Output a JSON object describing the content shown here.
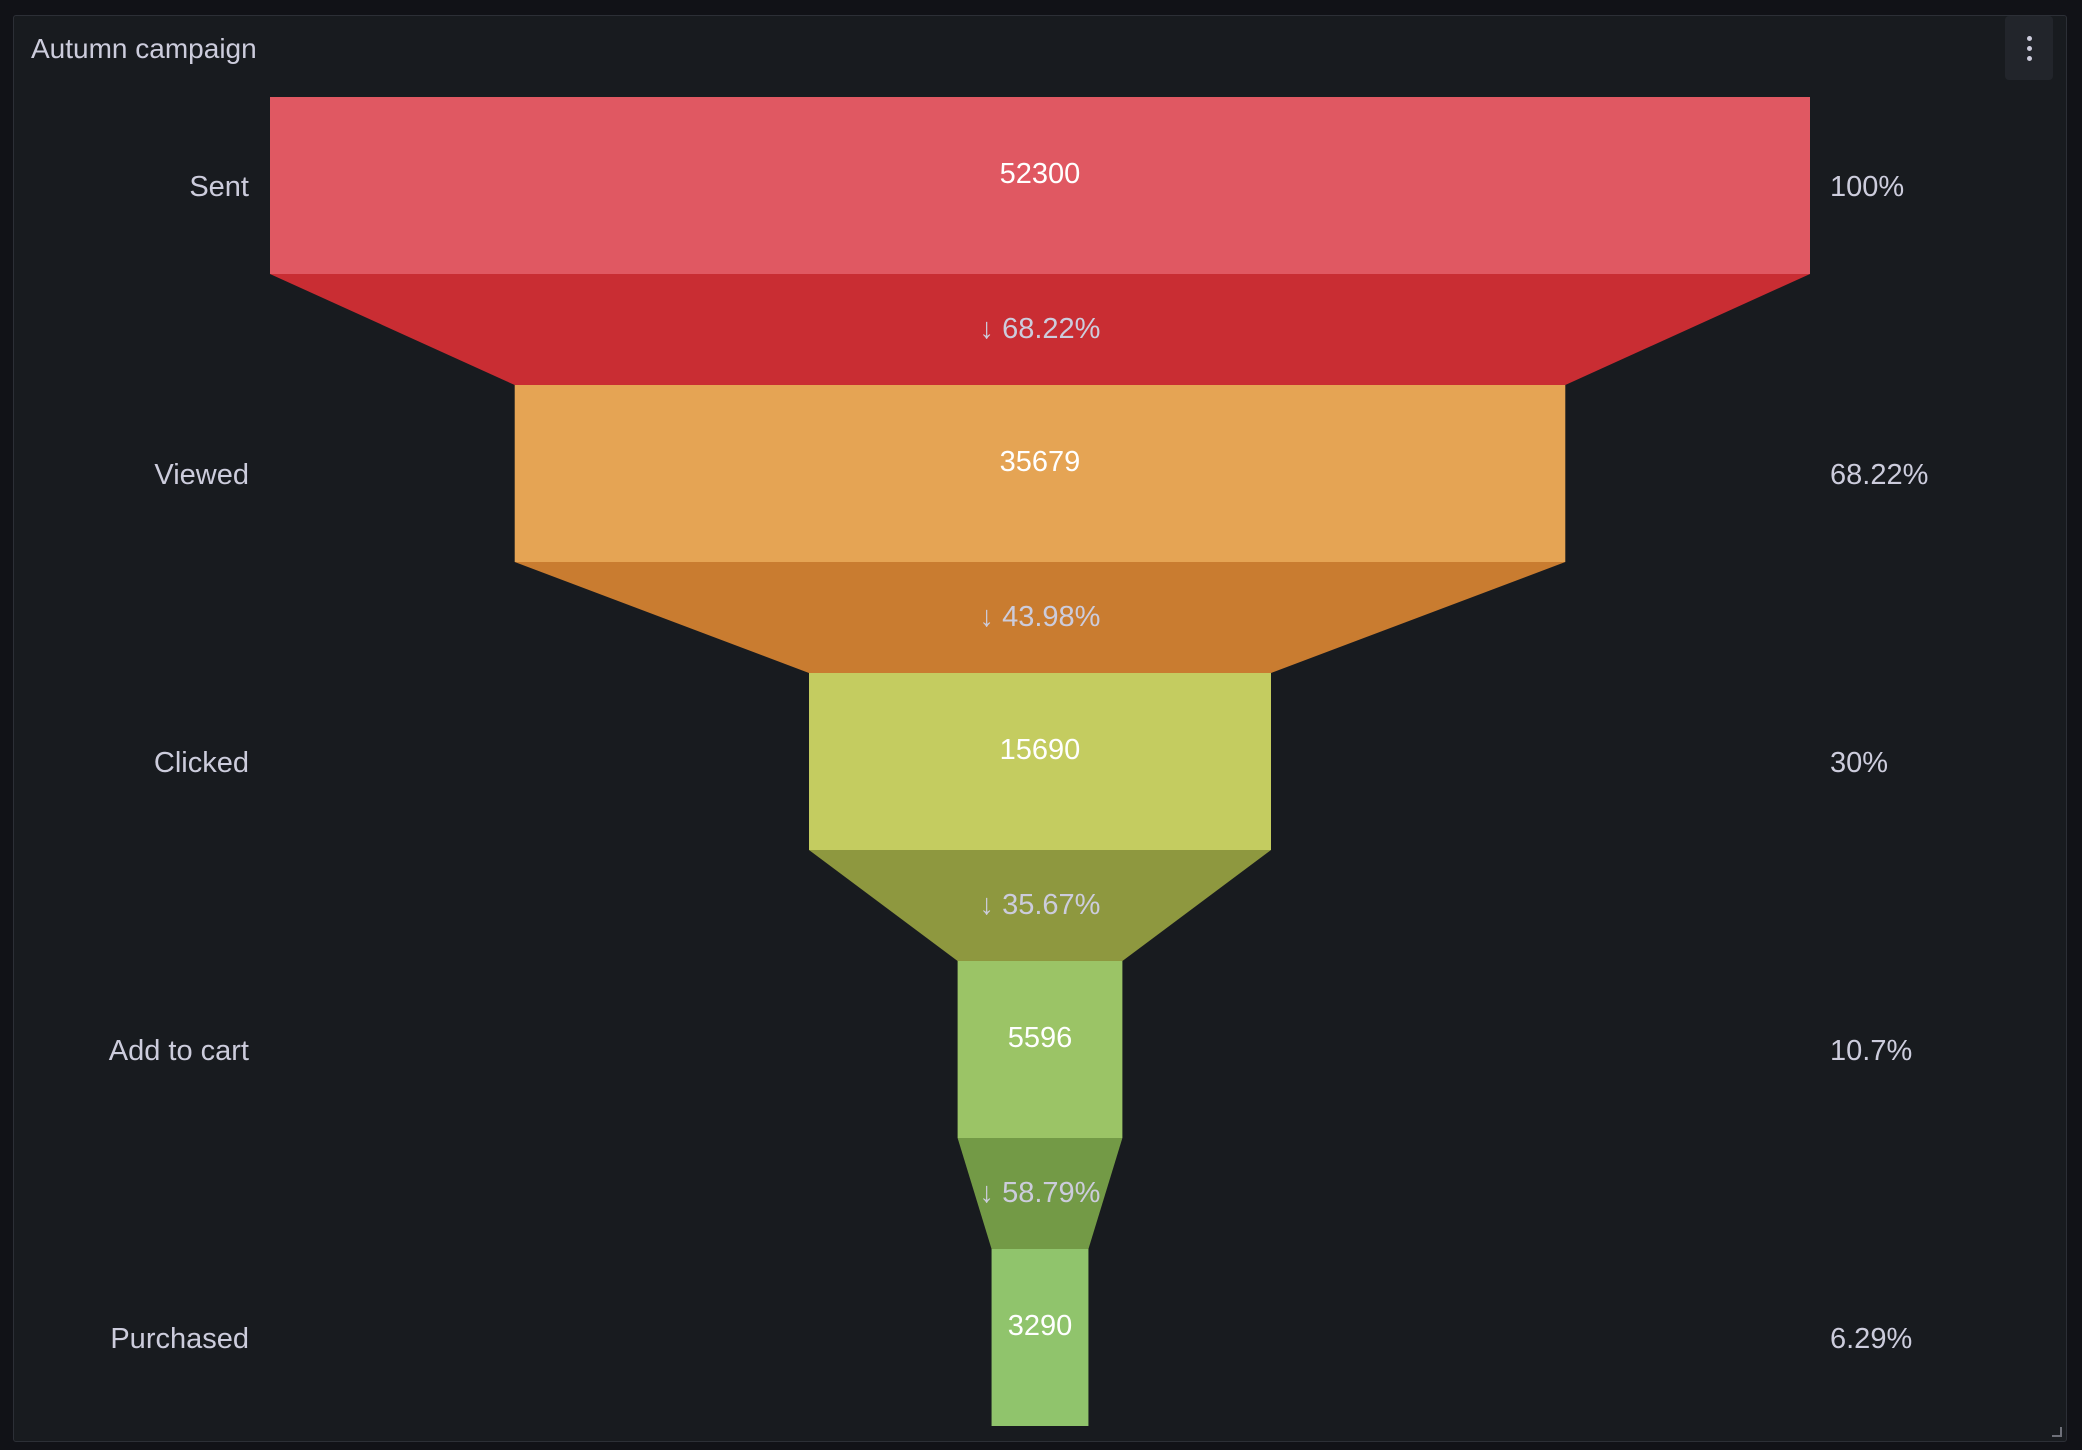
{
  "panel": {
    "title": "Autumn campaign",
    "menu_icon": "kebab-menu-icon"
  },
  "chart_data": {
    "type": "funnel",
    "title": "Autumn campaign",
    "stages": [
      {
        "label": "Sent",
        "value": 52300,
        "value_text": "52300",
        "percent_text": "100%",
        "color": "#e05862",
        "conversion_color": "#c92d33"
      },
      {
        "label": "Viewed",
        "value": 35679,
        "value_text": "35679",
        "percent_text": "68.22%",
        "color": "#e5a454",
        "conversion_color": "#c97c30"
      },
      {
        "label": "Clicked",
        "value": 15690,
        "value_text": "15690",
        "percent_text": "30%",
        "color": "#c4cc60",
        "conversion_color": "#8e983f"
      },
      {
        "label": "Add to cart",
        "value": 5596,
        "value_text": "5596",
        "percent_text": "10.7%",
        "color": "#9bc466",
        "conversion_color": "#739a46"
      },
      {
        "label": "Purchased",
        "value": 3290,
        "value_text": "3290",
        "percent_text": "6.29%",
        "color": "#90c46c",
        "conversion_color": null
      }
    ],
    "conversions": [
      "68.22%",
      "43.98%",
      "35.67%",
      "58.79%"
    ],
    "conversion_arrow": "↓"
  }
}
